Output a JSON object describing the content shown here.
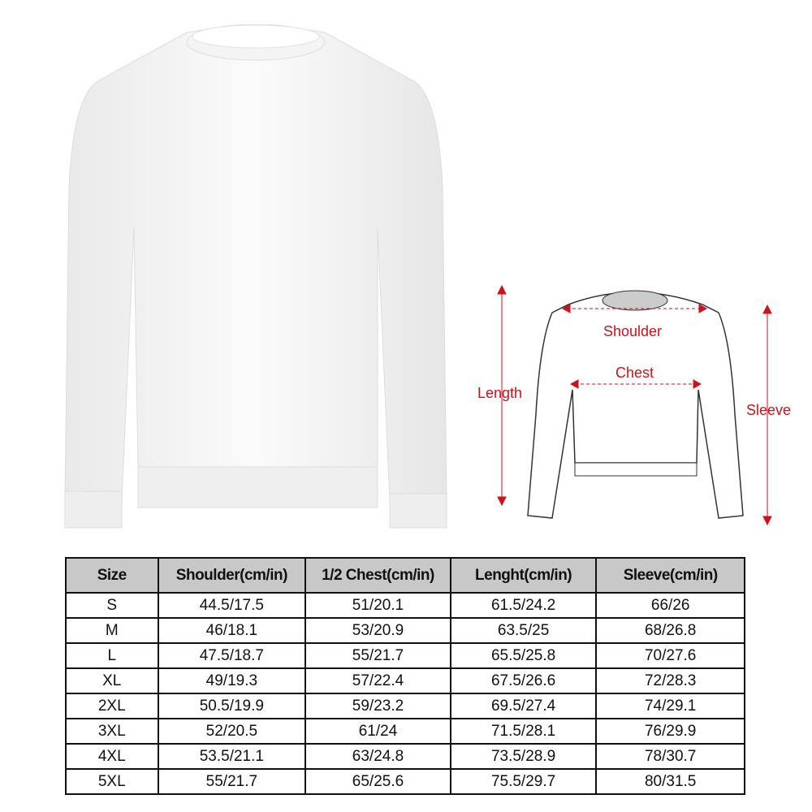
{
  "diagram_labels": {
    "shoulder": "Shoulder",
    "chest": "Chest",
    "length": "Length",
    "sleeve": "Sleeve"
  },
  "accent_color": "#d0101a",
  "size_table": {
    "headers": [
      "Size",
      "Shoulder(cm/in)",
      "1/2 Chest(cm/in)",
      "Lenght(cm/in)",
      "Sleeve(cm/in)"
    ],
    "rows": [
      [
        "S",
        "44.5/17.5",
        "51/20.1",
        "61.5/24.2",
        "66/26"
      ],
      [
        "M",
        "46/18.1",
        "53/20.9",
        "63.5/25",
        "68/26.8"
      ],
      [
        "L",
        "47.5/18.7",
        "55/21.7",
        "65.5/25.8",
        "70/27.6"
      ],
      [
        "XL",
        "49/19.3",
        "57/22.4",
        "67.5/26.6",
        "72/28.3"
      ],
      [
        "2XL",
        "50.5/19.9",
        "59/23.2",
        "69.5/27.4",
        "74/29.1"
      ],
      [
        "3XL",
        "52/20.5",
        "61/24",
        "71.5/28.1",
        "76/29.9"
      ],
      [
        "4XL",
        "53.5/21.1",
        "63/24.8",
        "73.5/28.9",
        "78/30.7"
      ],
      [
        "5XL",
        "55/21.7",
        "65/25.6",
        "75.5/29.7",
        "80/31.5"
      ]
    ]
  }
}
